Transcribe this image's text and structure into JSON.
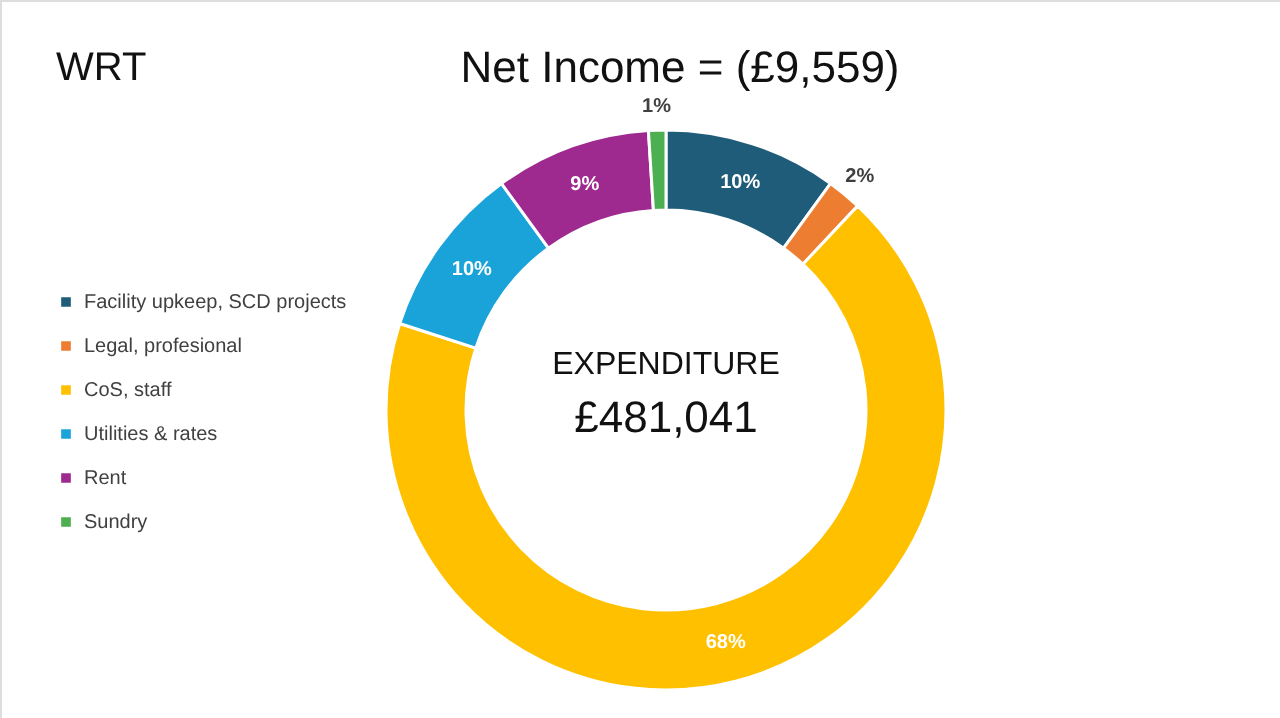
{
  "chart_data": {
    "type": "donut",
    "title": "Net Income = (£9,559)",
    "subtitle": "WRT",
    "categories": [
      "Facility upkeep, SCD projects",
      "Legal, profesional",
      "CoS, staff",
      "Utilities & rates",
      "Rent",
      "Sundry"
    ],
    "values": [
      10,
      2,
      68,
      10,
      9,
      1
    ],
    "colors": [
      "#1f5c7a",
      "#ed7d31",
      "#ffc000",
      "#1aa3d9",
      "#9e2a8f",
      "#4caf50"
    ],
    "value_labels": [
      "10%",
      "2%",
      "68%",
      "10%",
      "9%",
      "1%"
    ],
    "annotations": [
      "EXPENDITURE",
      "£481,041"
    ],
    "legend": "left"
  }
}
